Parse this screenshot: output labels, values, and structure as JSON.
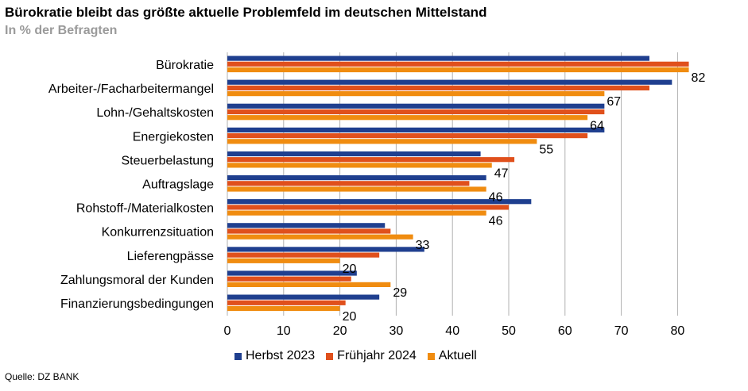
{
  "title": "Bürokratie bleibt das größte aktuelle Problemfeld im deutschen Mittelstand",
  "subtitle": "In % der Befragten",
  "source": "Quelle: DZ BANK",
  "colors": {
    "herbst_2023": "#1f3f8f",
    "fruehjahr_2024": "#e0501c",
    "aktuell": "#f08c10",
    "grid": "#b0b0b0"
  },
  "chart_data": {
    "type": "bar",
    "orientation": "horizontal",
    "title": "Bürokratie bleibt das größte aktuelle Problemfeld im deutschen Mittelstand",
    "subtitle": "In % der Befragten",
    "categories": [
      "Bürokratie",
      "Arbeiter-/Facharbeitermangel",
      "Lohn-/Gehaltskosten",
      "Energiekosten",
      "Steuerbelastung",
      "Auftragslage",
      "Rohstoff-/Materialkosten",
      "Konkurrenzsituation",
      "Lieferengpässe",
      "Zahlungsmoral der Kunden",
      "Finanzierungsbedingungen"
    ],
    "series": [
      {
        "name": "Herbst 2023",
        "values": [
          75,
          79,
          67,
          67,
          45,
          46,
          54,
          28,
          35,
          23,
          27
        ]
      },
      {
        "name": "Frühjahr 2024",
        "values": [
          82,
          75,
          67,
          64,
          51,
          43,
          50,
          29,
          27,
          22,
          21
        ]
      },
      {
        "name": "Aktuell",
        "values": [
          82,
          67,
          64,
          55,
          47,
          46,
          46,
          33,
          20,
          29,
          20
        ]
      }
    ],
    "data_labels_series": "Aktuell",
    "xlim": [
      0,
      85
    ],
    "xticks": [
      0,
      10,
      20,
      30,
      40,
      50,
      60,
      70,
      80
    ],
    "grid": true,
    "legend_position": "bottom"
  }
}
